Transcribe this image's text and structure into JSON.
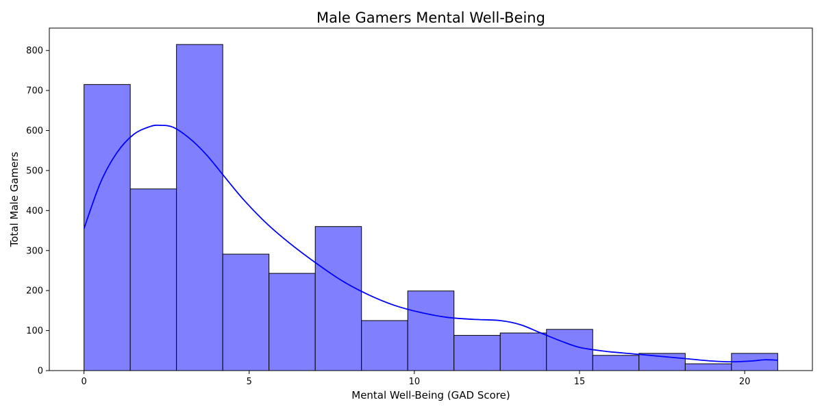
{
  "chart_data": {
    "type": "bar",
    "title": "Male Gamers Mental Well-Being",
    "xlabel": "Mental Well-Being (GAD Score)",
    "ylabel": "Total Male Gamers",
    "xlim": [
      -1.05,
      22.05
    ],
    "ylim": [
      0,
      856
    ],
    "xticks": [
      0,
      5,
      10,
      15,
      20
    ],
    "yticks": [
      0,
      100,
      200,
      300,
      400,
      500,
      600,
      700,
      800
    ],
    "bin_edges": [
      0,
      1.4,
      2.8,
      4.2,
      5.6,
      7.0,
      8.4,
      9.8,
      11.2,
      12.6,
      14.0,
      15.4,
      16.8,
      18.2,
      19.6,
      21.0
    ],
    "values": [
      715,
      454,
      815,
      291,
      243,
      360,
      125,
      199,
      88,
      94,
      103,
      38,
      43,
      17,
      43
    ],
    "bar_color": "#8080ff",
    "bar_edge_color": "#000000",
    "kde_color": "#0000ff",
    "kde_curve": {
      "x": [
        0,
        0.5,
        1.0,
        1.5,
        2.0,
        2.3,
        2.7,
        3.2,
        3.7,
        4.2,
        4.8,
        5.5,
        6.2,
        7.0,
        7.8,
        8.6,
        9.4,
        10.2,
        11.0,
        11.8,
        12.6,
        13.2,
        13.8,
        14.4,
        15.0,
        15.8,
        16.6,
        17.4,
        18.2,
        19.0,
        19.6,
        20.2,
        20.6,
        21.0
      ],
      "y": [
        355,
        470,
        545,
        590,
        610,
        613,
        608,
        580,
        540,
        490,
        430,
        370,
        320,
        270,
        225,
        190,
        163,
        145,
        133,
        128,
        125,
        115,
        95,
        75,
        58,
        48,
        42,
        36,
        30,
        24,
        22,
        24,
        27,
        26
      ]
    },
    "grid": false,
    "legend": "none"
  }
}
